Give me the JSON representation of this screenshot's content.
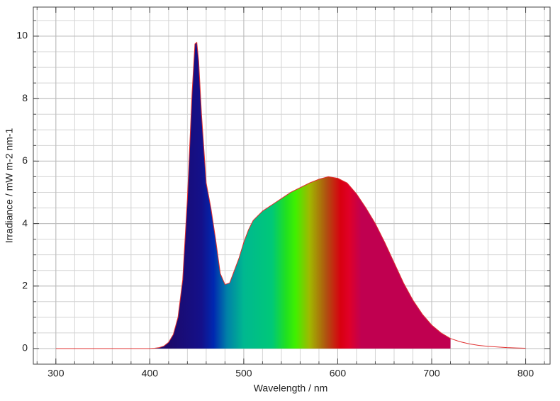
{
  "chart_data": {
    "type": "area",
    "xlabel": "Wavelength / nm",
    "ylabel": "Irradiance / mW m-2 nm-1",
    "xlim": [
      276,
      826
    ],
    "ylim": [
      -0.5,
      10.93
    ],
    "xticks": [
      300,
      400,
      500,
      600,
      700,
      800
    ],
    "yticks": [
      0,
      2,
      4,
      6,
      8,
      10
    ],
    "grid": true,
    "xminor_step": 20,
    "yminor_step": 0.5,
    "line_color": "#e03030",
    "fill_range": [
      400,
      720
    ],
    "fill_stops": [
      {
        "offset": 420,
        "color": "#1c0a6a"
      },
      {
        "offset": 455,
        "color": "#14108a"
      },
      {
        "offset": 468,
        "color": "#0028b0"
      },
      {
        "offset": 482,
        "color": "#0080a8"
      },
      {
        "offset": 500,
        "color": "#00b890"
      },
      {
        "offset": 530,
        "color": "#00c878"
      },
      {
        "offset": 545,
        "color": "#20e020"
      },
      {
        "offset": 555,
        "color": "#40f000"
      },
      {
        "offset": 570,
        "color": "#a0b800"
      },
      {
        "offset": 588,
        "color": "#b05010"
      },
      {
        "offset": 603,
        "color": "#d80010"
      },
      {
        "offset": 612,
        "color": "#e00028"
      },
      {
        "offset": 625,
        "color": "#c00050"
      },
      {
        "offset": 720,
        "color": "#c00050"
      }
    ],
    "x": [
      300,
      320,
      340,
      360,
      380,
      400,
      405,
      410,
      415,
      420,
      425,
      430,
      435,
      440,
      445,
      448,
      450,
      452,
      455,
      460,
      465,
      470,
      475,
      480,
      485,
      490,
      495,
      500,
      505,
      510,
      520,
      530,
      540,
      550,
      560,
      570,
      580,
      590,
      600,
      610,
      620,
      630,
      640,
      650,
      660,
      670,
      680,
      690,
      700,
      710,
      720,
      730,
      740,
      750,
      760,
      770,
      780,
      790,
      800
    ],
    "values": [
      0,
      0,
      0,
      0,
      0,
      0,
      0.01,
      0.03,
      0.08,
      0.2,
      0.45,
      1.0,
      2.2,
      4.8,
      8.2,
      9.75,
      9.8,
      9.2,
      7.5,
      5.3,
      4.5,
      3.5,
      2.4,
      2.05,
      2.1,
      2.5,
      2.9,
      3.4,
      3.8,
      4.1,
      4.4,
      4.6,
      4.8,
      5.0,
      5.15,
      5.3,
      5.42,
      5.5,
      5.45,
      5.3,
      4.95,
      4.5,
      4.0,
      3.4,
      2.75,
      2.1,
      1.55,
      1.1,
      0.75,
      0.5,
      0.32,
      0.22,
      0.15,
      0.1,
      0.07,
      0.05,
      0.03,
      0.02,
      0.01
    ]
  }
}
